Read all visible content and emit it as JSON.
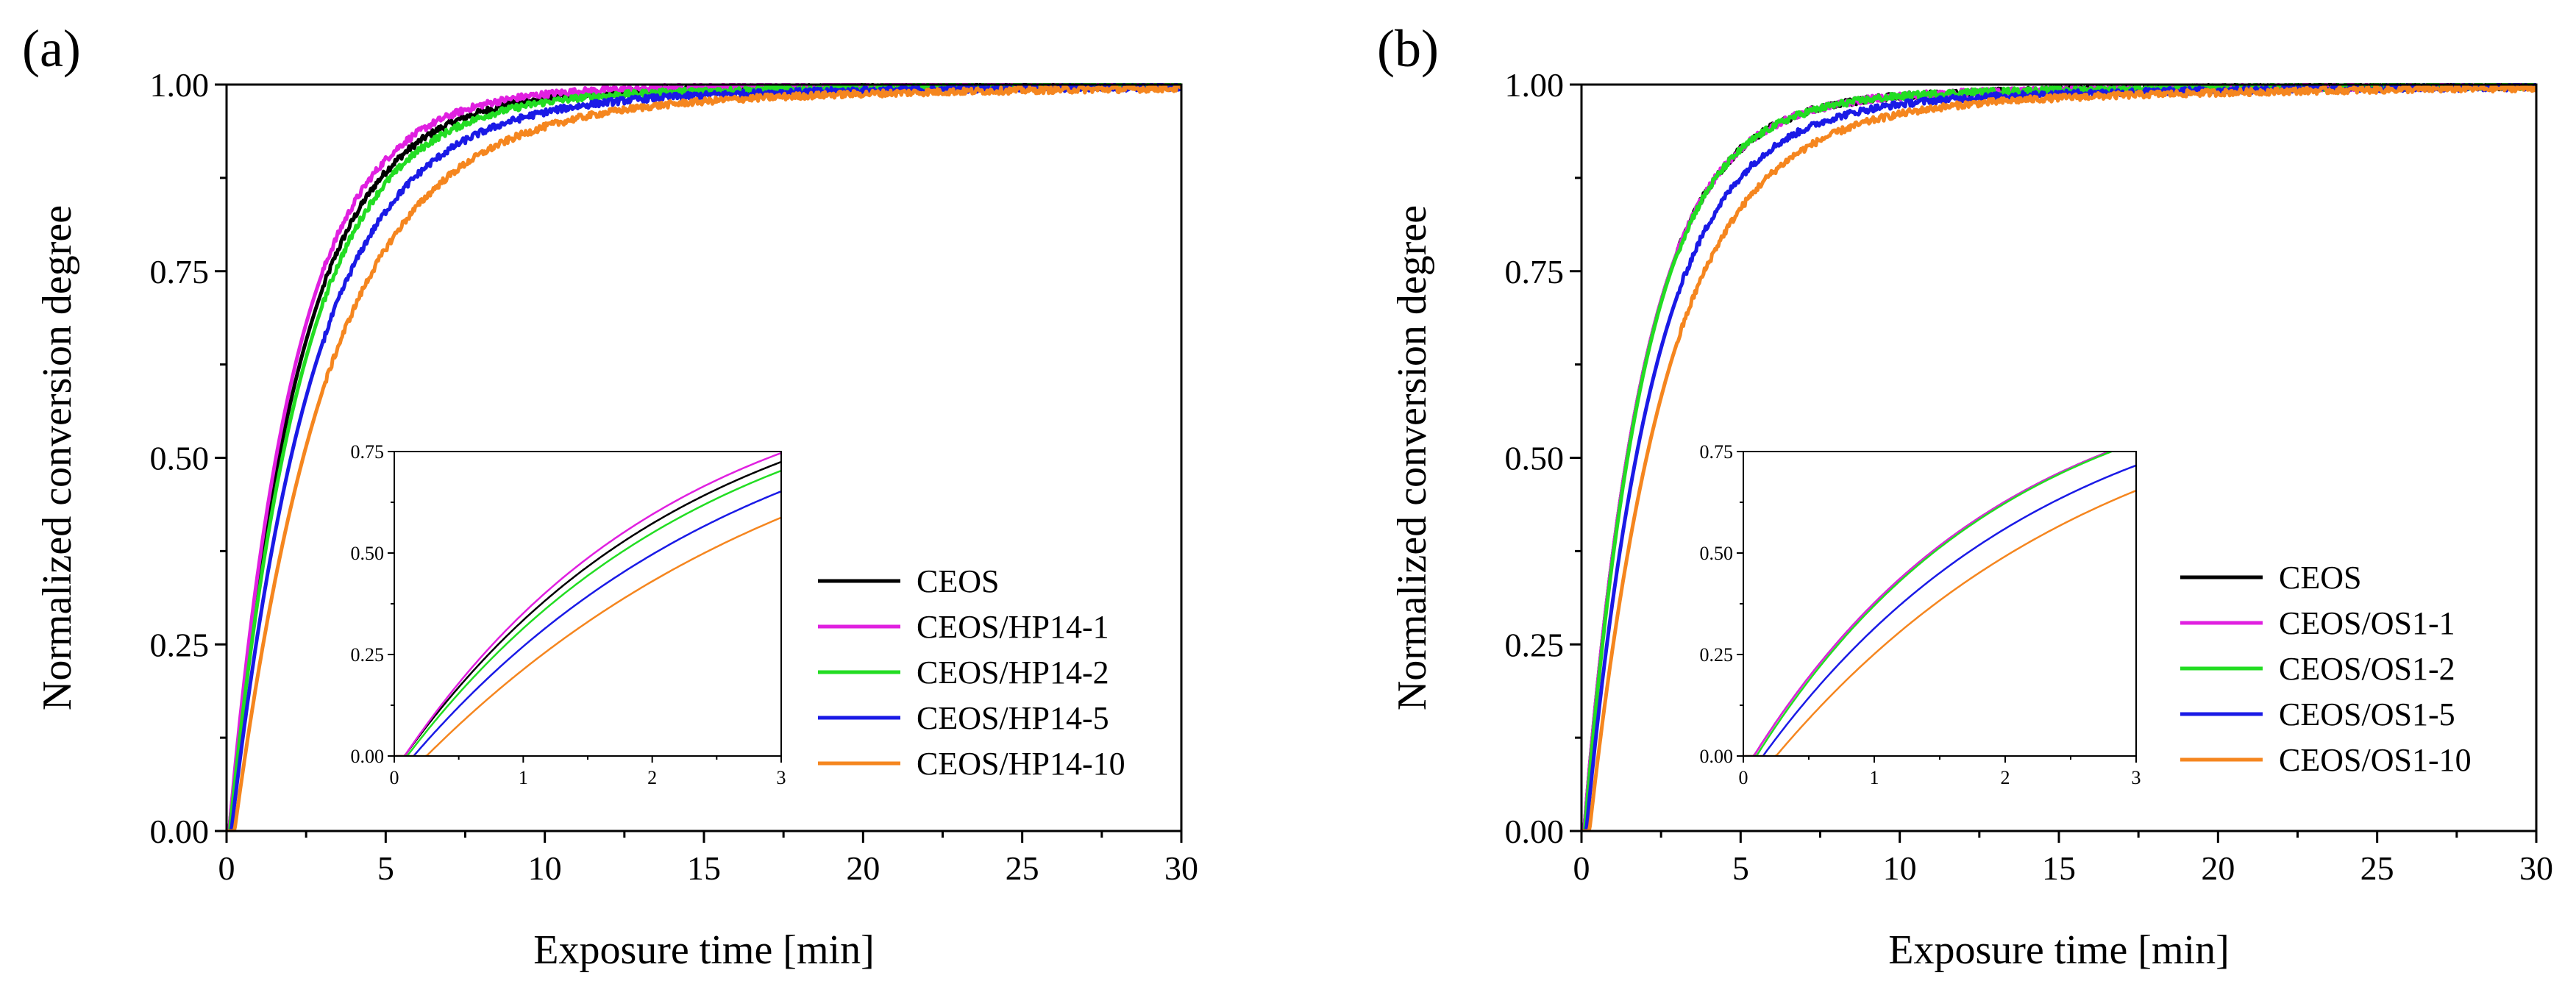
{
  "colors": {
    "CEOS": "#000000",
    "variant_1": "#e020e0",
    "variant_2": "#22dd22",
    "variant_5": "#1a1ae6",
    "variant_10": "#f5861f"
  },
  "chart_data": [
    {
      "type": "line",
      "panel_label": "(a)",
      "xlabel": "Exposure time [min]",
      "ylabel": "Normalized conversion degree",
      "xlim": [
        0,
        30
      ],
      "ylim": [
        0,
        1
      ],
      "x_ticks": [
        "0",
        "5",
        "10",
        "15",
        "20",
        "25",
        "30"
      ],
      "y_ticks": [
        "0.00",
        "0.25",
        "0.50",
        "0.75",
        "1.00"
      ],
      "legend_position": "lower-right",
      "series": [
        {
          "name": "CEOS",
          "color": "#000000",
          "k": 0.46,
          "t0": 0.08,
          "tail": 0.02
        },
        {
          "name": "CEOS/HP14-1",
          "color": "#e020e0",
          "k": 0.48,
          "t0": 0.08,
          "tail": 0.01
        },
        {
          "name": "CEOS/HP14-2",
          "color": "#22dd22",
          "k": 0.44,
          "t0": 0.1,
          "tail": 0.025
        },
        {
          "name": "CEOS/HP14-5",
          "color": "#1a1ae6",
          "k": 0.4,
          "t0": 0.15,
          "tail": 0.04
        },
        {
          "name": "CEOS/HP14-10",
          "color": "#f5861f",
          "k": 0.36,
          "t0": 0.25,
          "tail": 0.06
        }
      ],
      "inset": {
        "xlim": [
          0,
          3
        ],
        "ylim": [
          0,
          0.75
        ],
        "x_ticks": [
          "0",
          "1",
          "2",
          "3"
        ],
        "y_ticks": [
          "0.00",
          "0.25",
          "0.50",
          "0.75"
        ]
      }
    },
    {
      "type": "line",
      "panel_label": "(b)",
      "xlabel": "Exposure time [min]",
      "ylabel": "Normalized conversion degree",
      "xlim": [
        0,
        30
      ],
      "ylim": [
        0,
        1
      ],
      "x_ticks": [
        "0",
        "5",
        "10",
        "15",
        "20",
        "25",
        "30"
      ],
      "y_ticks": [
        "0.00",
        "0.25",
        "0.50",
        "0.75",
        "1.00"
      ],
      "legend_position": "lower-right",
      "series": [
        {
          "name": "CEOS",
          "color": "#000000",
          "k": 0.54,
          "t0": 0.08,
          "tail": 0.025
        },
        {
          "name": "CEOS/OS1-1",
          "color": "#e020e0",
          "k": 0.54,
          "t0": 0.08,
          "tail": 0.025
        },
        {
          "name": "CEOS/OS1-2",
          "color": "#22dd22",
          "k": 0.54,
          "t0": 0.1,
          "tail": 0.025
        },
        {
          "name": "CEOS/OS1-5",
          "color": "#1a1ae6",
          "k": 0.48,
          "t0": 0.15,
          "tail": 0.04
        },
        {
          "name": "CEOS/OS1-10",
          "color": "#f5861f",
          "k": 0.43,
          "t0": 0.25,
          "tail": 0.055
        }
      ],
      "inset": {
        "xlim": [
          0,
          3
        ],
        "ylim": [
          0,
          0.75
        ],
        "x_ticks": [
          "0",
          "1",
          "2",
          "3"
        ],
        "y_ticks": [
          "0.00",
          "0.25",
          "0.50",
          "0.75"
        ]
      }
    }
  ]
}
